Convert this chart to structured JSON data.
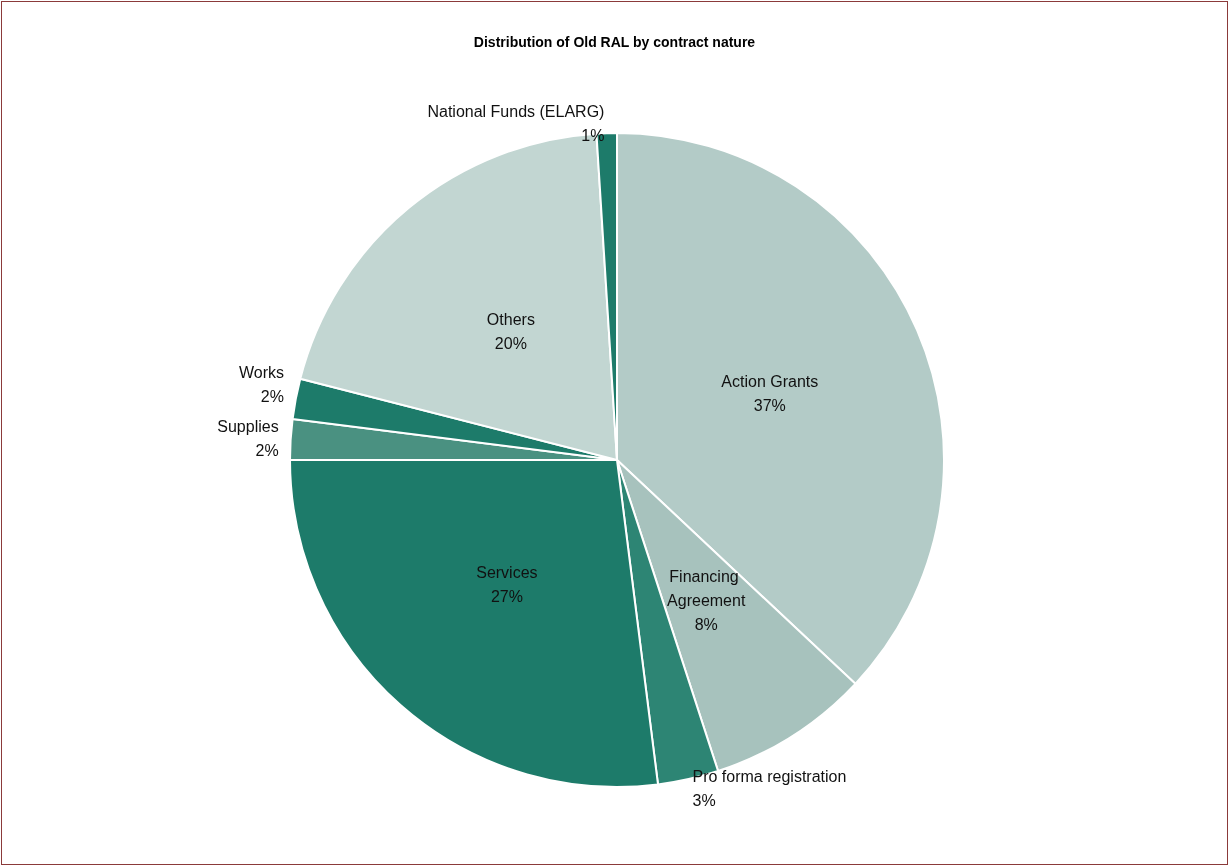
{
  "chart_data": {
    "type": "pie",
    "title": "Distribution of Old RAL by contract nature",
    "categories": [
      "Action Grants",
      "Financing Agreement",
      "Pro forma registration",
      "Services",
      "Supplies",
      "Works",
      "Others",
      "National Funds (ELARG)"
    ],
    "values": [
      37,
      8,
      3,
      27,
      2,
      2,
      20,
      1
    ],
    "value_labels": [
      "37%",
      "8%",
      "3%",
      "27%",
      "2%",
      "2%",
      "20%",
      "1%"
    ],
    "colors": [
      "#b3cbc7",
      "#a7c2bd",
      "#2d8574",
      "#1d7b6a",
      "#4a9181",
      "#1d7b6a",
      "#c2d6d2",
      "#1d7b6a"
    ],
    "legend": false
  }
}
